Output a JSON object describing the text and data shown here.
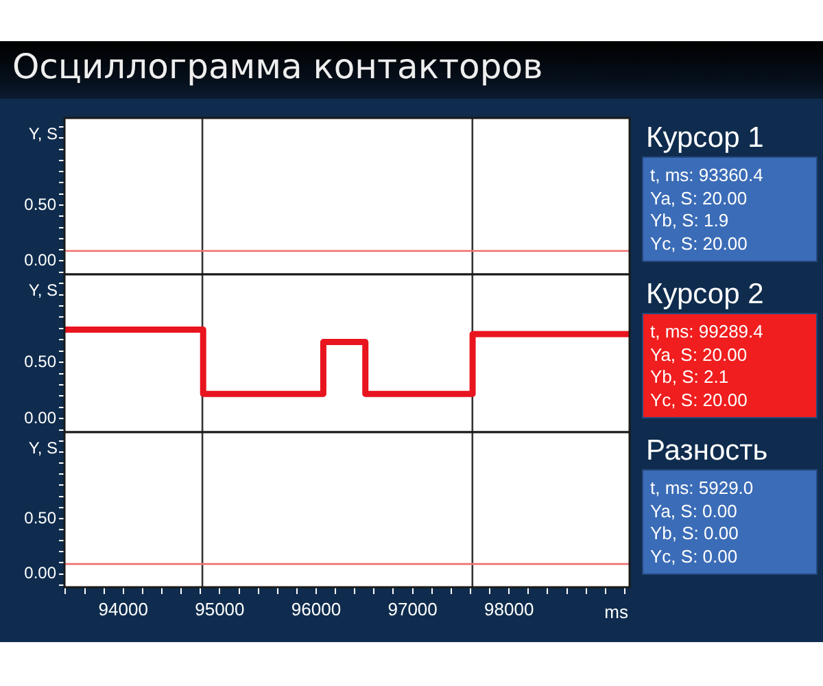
{
  "chart_data": [
    {
      "type": "step",
      "title": "Осциллограмма контакторов",
      "ylabel": "Y, S",
      "tick_labels": "y",
      "x": [
        93390,
        99250
      ],
      "values": [
        0.09,
        0.09
      ],
      "color": "#f07070",
      "xlim": [
        93390,
        99250
      ],
      "ylim": [
        -0.12,
        1.28
      ],
      "yticks": [
        {
          "value": -0.1,
          "label": null
        },
        {
          "value": 0,
          "label": "0.00"
        },
        {
          "value": 0.1,
          "label": null
        },
        {
          "value": 0.2,
          "label": null
        },
        {
          "value": 0.3,
          "label": null
        },
        {
          "value": 0.4,
          "label": null
        },
        {
          "value": 0.5,
          "label": "0.50"
        },
        {
          "value": 0.6,
          "label": null
        },
        {
          "value": 0.7,
          "label": null
        },
        {
          "value": 0.8,
          "label": null
        },
        {
          "value": 0.9,
          "label": null
        },
        {
          "value": 1.0,
          "label": null
        },
        {
          "value": 1.1,
          "label": null
        },
        {
          "value": 1.2,
          "label": null
        }
      ],
      "ref_lines": [
        {
          "axis": "x",
          "value": 94820,
          "color": "#333333"
        },
        {
          "axis": "x",
          "value": 97620,
          "color": "#333333"
        }
      ]
    },
    {
      "type": "other",
      "title": "Курсор 1",
      "color": "#3b6cb7",
      "annotations": [
        "t, ms: 93360.4",
        "Ya, S: 20.00",
        "Yb, S: 1.9",
        "Yc, S: 20.00"
      ]
    },
    {
      "type": "step",
      "ylabel": "Y, S",
      "tick_labels": "y",
      "x": [
        93390,
        94828,
        96074,
        96510,
        97622,
        99250
      ],
      "values": [
        0.79,
        0.22,
        0.68,
        0.22,
        0.75,
        0.75
      ],
      "color": "#e8141e",
      "xlim": [
        93390,
        99250
      ],
      "ylim": [
        -0.12,
        1.28
      ],
      "yticks": [
        {
          "value": -0.1,
          "label": null
        },
        {
          "value": 0,
          "label": "0.00"
        },
        {
          "value": 0.1,
          "label": null
        },
        {
          "value": 0.2,
          "label": null
        },
        {
          "value": 0.3,
          "label": null
        },
        {
          "value": 0.4,
          "label": null
        },
        {
          "value": 0.5,
          "label": "0.50"
        },
        {
          "value": 0.6,
          "label": null
        },
        {
          "value": 0.7,
          "label": null
        },
        {
          "value": 0.8,
          "label": null
        },
        {
          "value": 0.9,
          "label": null
        },
        {
          "value": 1.0,
          "label": null
        },
        {
          "value": 1.1,
          "label": null
        },
        {
          "value": 1.2,
          "label": null
        }
      ],
      "ref_lines": [
        {
          "axis": "x",
          "value": 94820,
          "color": "#333333"
        },
        {
          "axis": "x",
          "value": 97620,
          "color": "#333333"
        }
      ]
    },
    {
      "type": "other",
      "title": "Курсор 2",
      "color": "#f01e1e",
      "annotations": [
        "t, ms: 99289.4",
        "Ya, S: 20.00",
        "Yb, S: 2.1",
        "Yc, S: 20.00"
      ]
    },
    {
      "type": "step",
      "ylabel": "Y, S",
      "xlabel": "ms",
      "x": [
        93390,
        99250
      ],
      "values": [
        0.09,
        0.09
      ],
      "color": "#f07070",
      "xlim": [
        93390,
        99250
      ],
      "xticks": [
        {
          "value": 93400,
          "label": null
        },
        {
          "value": 93600,
          "label": null
        },
        {
          "value": 93800,
          "label": null
        },
        94000,
        {
          "value": 94200,
          "label": null
        },
        {
          "value": 94400,
          "label": null
        },
        {
          "value": 94600,
          "label": null
        },
        {
          "value": 94800,
          "label": null
        },
        95000,
        {
          "value": 95200,
          "label": null
        },
        {
          "value": 95400,
          "label": null
        },
        {
          "value": 95600,
          "label": null
        },
        {
          "value": 95800,
          "label": null
        },
        96000,
        {
          "value": 96200,
          "label": null
        },
        {
          "value": 96400,
          "label": null
        },
        {
          "value": 96600,
          "label": null
        },
        {
          "value": 96800,
          "label": null
        },
        97000,
        {
          "value": 97200,
          "label": null
        },
        {
          "value": 97400,
          "label": null
        },
        {
          "value": 97600,
          "label": null
        },
        {
          "value": 97800,
          "label": null
        },
        98000,
        {
          "value": 98200,
          "label": null
        },
        {
          "value": 98400,
          "label": null
        },
        {
          "value": 98600,
          "label": null
        },
        {
          "value": 98800,
          "label": null
        },
        {
          "value": 99000,
          "label": null
        },
        {
          "value": 99200,
          "label": null
        }
      ],
      "ylim": [
        -0.12,
        1.28
      ],
      "yticks": [
        {
          "value": -0.1,
          "label": null
        },
        {
          "value": 0,
          "label": "0.00"
        },
        {
          "value": 0.1,
          "label": null
        },
        {
          "value": 0.2,
          "label": null
        },
        {
          "value": 0.3,
          "label": null
        },
        {
          "value": 0.4,
          "label": null
        },
        {
          "value": 0.5,
          "label": "0.50"
        },
        {
          "value": 0.6,
          "label": null
        },
        {
          "value": 0.7,
          "label": null
        },
        {
          "value": 0.8,
          "label": null
        },
        {
          "value": 0.9,
          "label": null
        },
        {
          "value": 1.0,
          "label": null
        },
        {
          "value": 1.1,
          "label": null
        },
        {
          "value": 1.2,
          "label": null
        }
      ],
      "ref_lines": [
        {
          "axis": "x",
          "value": 94820,
          "color": "#333333"
        },
        {
          "axis": "x",
          "value": 97620,
          "color": "#333333"
        }
      ]
    },
    {
      "type": "other",
      "title": "Разность",
      "color": "#3b6cb7",
      "annotations": [
        "t, ms: 5929.0",
        "Ya, S: 0.00",
        "Yb, S: 0.00",
        "Yc, S: 0.00"
      ]
    }
  ]
}
